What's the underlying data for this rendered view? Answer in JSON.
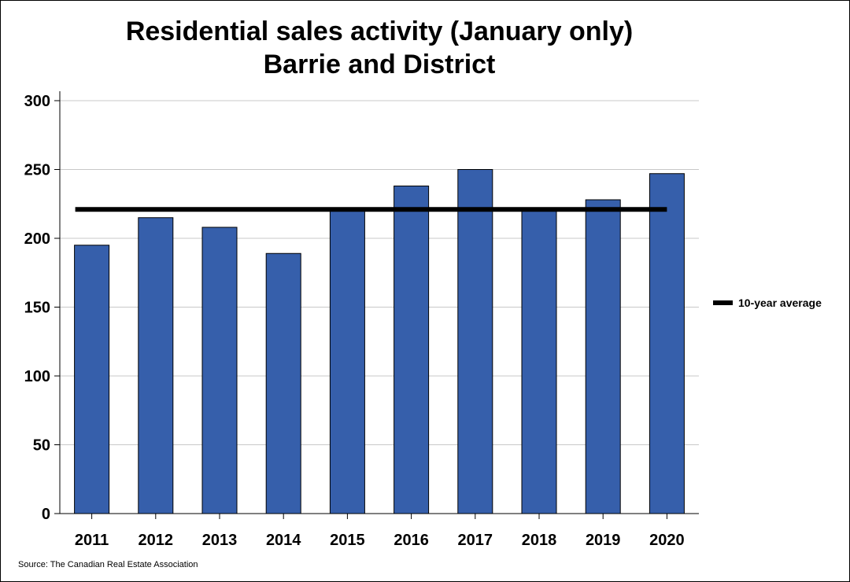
{
  "chart_data": {
    "type": "bar",
    "title": [
      "Residential sales activity (January only)",
      "Barrie and District"
    ],
    "categories": [
      "2011",
      "2012",
      "2013",
      "2014",
      "2015",
      "2016",
      "2017",
      "2018",
      "2019",
      "2020"
    ],
    "series": [
      {
        "values": [
          195,
          215,
          208,
          189,
          220,
          238,
          250,
          220,
          228,
          247
        ],
        "color": "#365fab"
      }
    ],
    "reference_line": {
      "name": "10-year average",
      "value": 221,
      "color": "#000000"
    },
    "ylim": [
      0,
      300
    ],
    "yticks": [
      0,
      50,
      100,
      150,
      200,
      250,
      300
    ],
    "grid": true,
    "legend": "right",
    "source": "Source: The Canadian Real Estate Association"
  }
}
